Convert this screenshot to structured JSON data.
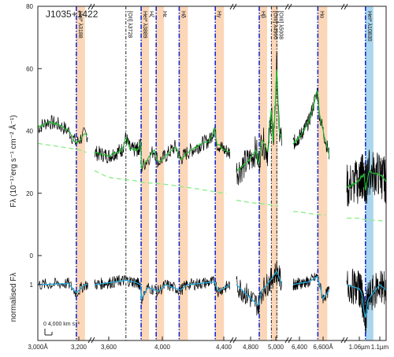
{
  "chart_data": {
    "type": "line",
    "title": "J1035+1422",
    "ylabel_top": "Fλ (10⁻¹⁷erg s⁻¹ cm⁻² Å⁻¹)",
    "ylabel_bottom": "normalised Fλ",
    "yticks_top": [
      "0",
      "20",
      "40",
      "60",
      "80"
    ],
    "ytick_values_top": [
      0,
      20,
      40,
      60,
      80
    ],
    "ylim_top": [
      0,
      80
    ],
    "yticks_bottom": [
      "1"
    ],
    "ytick_values_bottom": [
      1
    ],
    "ylim_bottom": [
      -0.4,
      1.6
    ],
    "xticks": [
      "3,000Å",
      "3,200",
      "3,600",
      "4,000",
      "4,400",
      "4,800",
      "5,000",
      "6,400",
      "6,600Å",
      "1.06µm",
      "1.1µm"
    ],
    "scale_bar_label": "0   4,000 km s⁻¹",
    "segments": [
      {
        "x0": 3000,
        "x1": 3250,
        "unit": "Å"
      },
      {
        "x0": 3500,
        "x1": 4450,
        "unit": "Å"
      },
      {
        "x0": 4700,
        "x1": 5050,
        "unit": "Å"
      },
      {
        "x0": 6300,
        "x1": 6650,
        "unit": "Å"
      },
      {
        "x0": 10500,
        "x1": 11100,
        "unit": "Å"
      }
    ],
    "lines": [
      {
        "label": "HeI* λ3188",
        "wave": 3188,
        "style": "blue"
      },
      {
        "label": "[OII] λ3728",
        "wave": 3728,
        "style": "black"
      },
      {
        "label": "HeI* λ3889",
        "wave": 3889,
        "style": "blue"
      },
      {
        "label": "Hζ",
        "wave": 3889,
        "style": "blue"
      },
      {
        "label": "Hε",
        "wave": 3970,
        "style": "blue"
      },
      {
        "label": "Hδ",
        "wave": 4102,
        "style": "blue"
      },
      {
        "label": "Hγ",
        "wave": 4340,
        "style": "blue"
      },
      {
        "label": "Hβ",
        "wave": 4861,
        "style": "blue"
      },
      {
        "label": "[OIII] λ4960",
        "wave": 4960,
        "style": "black"
      },
      {
        "label": "[OIII] λ5008",
        "wave": 5008,
        "style": "black"
      },
      {
        "label": "Hα",
        "wave": 6563,
        "style": "blue"
      },
      {
        "label": "HeI* λ10830",
        "wave": 10830,
        "style": "blue"
      }
    ],
    "series": [
      {
        "role": "observed",
        "color": "#000000"
      },
      {
        "role": "model",
        "color": "#22bb33"
      },
      {
        "role": "continuum",
        "color": "#88ee88"
      },
      {
        "role": "normalised-model",
        "color": "#22aadd"
      }
    ],
    "continuum_knots": [
      [
        3000,
        36
      ],
      [
        3200,
        34
      ],
      [
        3600,
        25
      ],
      [
        4000,
        23
      ],
      [
        4400,
        20
      ],
      [
        4800,
        17
      ],
      [
        5000,
        16
      ],
      [
        6400,
        14
      ],
      [
        6600,
        13
      ],
      [
        10600,
        12
      ],
      [
        11100,
        11
      ]
    ],
    "flux_knots": [
      [
        3000,
        41
      ],
      [
        3050,
        43
      ],
      [
        3100,
        42
      ],
      [
        3150,
        40
      ],
      [
        3188,
        36
      ],
      [
        3230,
        39
      ],
      [
        3500,
        33
      ],
      [
        3600,
        32
      ],
      [
        3700,
        34
      ],
      [
        3728,
        38
      ],
      [
        3760,
        34
      ],
      [
        3850,
        34
      ],
      [
        3880,
        37
      ],
      [
        3895,
        28
      ],
      [
        3930,
        31
      ],
      [
        3960,
        34
      ],
      [
        3980,
        30
      ],
      [
        4020,
        32
      ],
      [
        4080,
        35
      ],
      [
        4110,
        31
      ],
      [
        4150,
        33
      ],
      [
        4250,
        36
      ],
      [
        4300,
        37
      ],
      [
        4335,
        41
      ],
      [
        4350,
        36
      ],
      [
        4400,
        34
      ],
      [
        4450,
        33
      ],
      [
        4700,
        27
      ],
      [
        4780,
        30
      ],
      [
        4840,
        34
      ],
      [
        4855,
        29
      ],
      [
        4880,
        37
      ],
      [
        4930,
        33
      ],
      [
        4960,
        48
      ],
      [
        4975,
        36
      ],
      [
        4990,
        44
      ],
      [
        5008,
        62
      ],
      [
        5025,
        40
      ],
      [
        5050,
        37
      ],
      [
        6300,
        36
      ],
      [
        6400,
        38
      ],
      [
        6500,
        43
      ],
      [
        6560,
        53
      ],
      [
        6575,
        45
      ],
      [
        6600,
        40
      ],
      [
        6650,
        32
      ],
      [
        10500,
        22
      ],
      [
        10650,
        25
      ],
      [
        10800,
        26
      ],
      [
        10830,
        21
      ],
      [
        10900,
        27
      ],
      [
        11000,
        26
      ],
      [
        11100,
        24
      ]
    ],
    "norm_knots": [
      [
        3000,
        1.0
      ],
      [
        3150,
        1.02
      ],
      [
        3188,
        0.85
      ],
      [
        3230,
        1.0
      ],
      [
        3500,
        1.0
      ],
      [
        3728,
        1.08
      ],
      [
        3880,
        1.0
      ],
      [
        3895,
        0.72
      ],
      [
        3930,
        0.95
      ],
      [
        3980,
        0.88
      ],
      [
        4020,
        1.0
      ],
      [
        4110,
        0.9
      ],
      [
        4150,
        1.0
      ],
      [
        4335,
        1.05
      ],
      [
        4360,
        0.88
      ],
      [
        4450,
        1.0
      ],
      [
        4700,
        1.0
      ],
      [
        4855,
        0.62
      ],
      [
        4880,
        0.9
      ],
      [
        4960,
        1.1
      ],
      [
        5008,
        1.25
      ],
      [
        5050,
        1.0
      ],
      [
        6300,
        1.0
      ],
      [
        6500,
        1.05
      ],
      [
        6560,
        1.15
      ],
      [
        6600,
        0.75
      ],
      [
        6650,
        0.9
      ],
      [
        10500,
        1.0
      ],
      [
        10700,
        0.85
      ],
      [
        10830,
        0.4
      ],
      [
        10880,
        0.7
      ],
      [
        11000,
        1.0
      ],
      [
        11100,
        0.9
      ]
    ]
  }
}
